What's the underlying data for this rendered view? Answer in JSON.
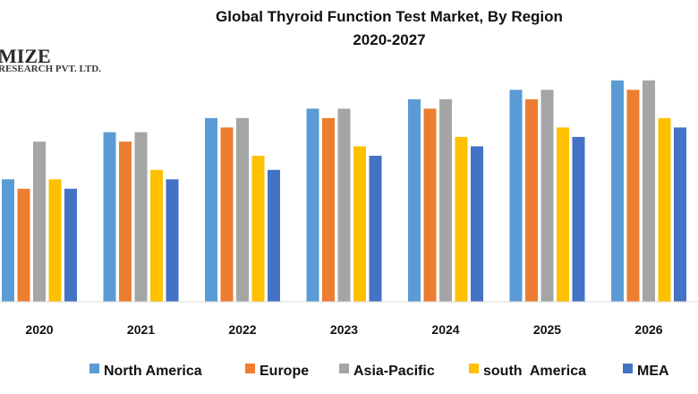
{
  "chart_data": {
    "type": "bar",
    "title": "Global Thyroid Function Test Market, By Region",
    "subtitle": "2020-2027",
    "categories": [
      "2020",
      "2021",
      "2022",
      "2023",
      "2024",
      "2025",
      "2026"
    ],
    "series": [
      {
        "name": "North America",
        "color": "#5B9BD5",
        "values": [
          13,
          18,
          19.5,
          20.5,
          21.5,
          22.5,
          23.5
        ]
      },
      {
        "name": "Europe",
        "color": "#ED7D31",
        "values": [
          12,
          17,
          18.5,
          19.5,
          20.5,
          21.5,
          22.5
        ]
      },
      {
        "name": "Asia-Pacific",
        "color": "#A5A5A5",
        "values": [
          17,
          18,
          19.5,
          20.5,
          21.5,
          22.5,
          23.5
        ]
      },
      {
        "name": "south  America",
        "color": "#FFC000",
        "values": [
          13,
          14,
          15.5,
          16.5,
          17.5,
          18.5,
          19.5
        ]
      },
      {
        "name": "MEA",
        "color": "#4472C4",
        "values": [
          12,
          13,
          14,
          15.5,
          16.5,
          17.5,
          18.5
        ]
      }
    ],
    "xlabel": "",
    "ylabel": "",
    "ylim": [
      0,
      25
    ],
    "grid": false,
    "legend": "bottom"
  },
  "watermark": {
    "line1": "MIZE",
    "line2": "RESEARCH PVT. LTD."
  }
}
